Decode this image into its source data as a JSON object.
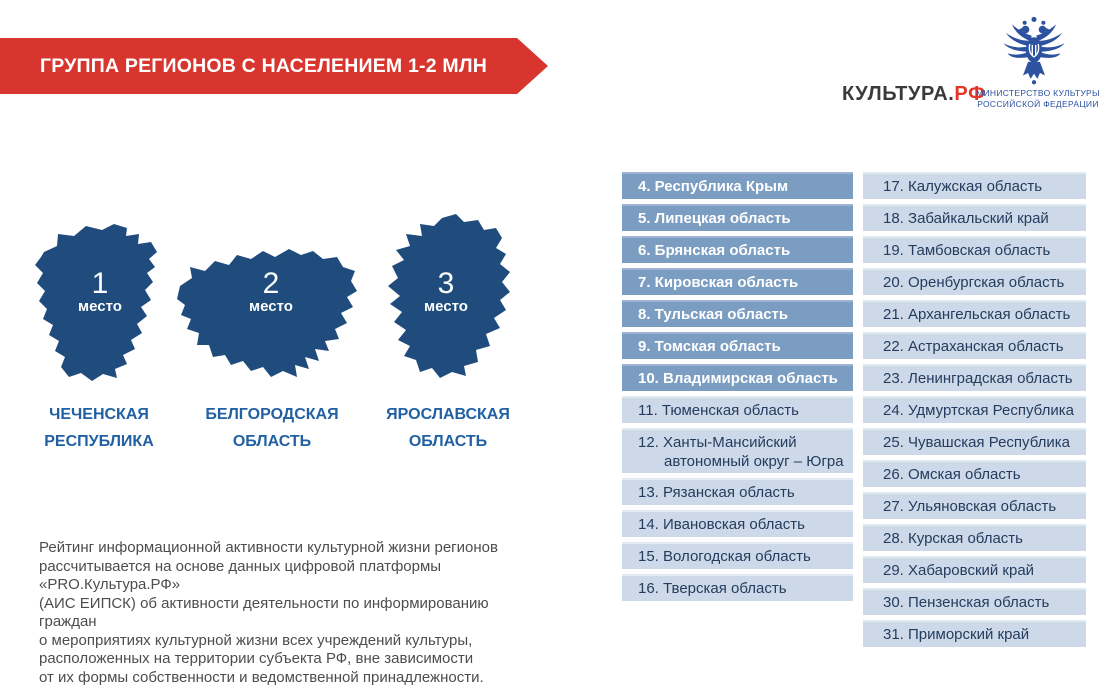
{
  "header": {
    "banner_title": "ГРУППА РЕГИОНОВ С НАСЕЛЕНИЕМ 1-2 МЛН",
    "brand": {
      "name_dark": "КУЛЬТУРА.",
      "name_red": "РФ"
    },
    "ministry": {
      "line1": "МИНИСТЕРСТВО КУЛЬТУРЫ",
      "line2": "РОССИЙСКОЙ ФЕДЕРАЦИИ",
      "emblem_icon": "double-headed-eagle"
    }
  },
  "top3": [
    {
      "rank": "1",
      "place_label": "место",
      "region_line1": "ЧЕЧЕНСКАЯ",
      "region_line2": "РЕСПУБЛИКА"
    },
    {
      "rank": "2",
      "place_label": "место",
      "region_line1": "БЕЛГОРОДСКАЯ",
      "region_line2": "ОБЛАСТЬ"
    },
    {
      "rank": "3",
      "place_label": "место",
      "region_line1": "ЯРОСЛАВСКАЯ",
      "region_line2": "ОБЛАСТЬ"
    }
  ],
  "ranking": {
    "column1": [
      {
        "text": "4. Республика Крым",
        "style": "dark"
      },
      {
        "text": "5. Липецкая область",
        "style": "dark"
      },
      {
        "text": "6. Брянская область",
        "style": "dark"
      },
      {
        "text": "7. Кировская область",
        "style": "dark"
      },
      {
        "text": "8. Тульская область",
        "style": "dark"
      },
      {
        "text": "9. Томская область",
        "style": "dark"
      },
      {
        "text": "10. Владимирская область",
        "style": "dark"
      },
      {
        "text": "11. Тюменская область",
        "style": "light"
      },
      {
        "text": "12. Ханты-Мансийский автономный округ – Югра",
        "style": "light",
        "tall": true
      },
      {
        "text": "13. Рязанская область",
        "style": "light"
      },
      {
        "text": "14. Ивановская область",
        "style": "light"
      },
      {
        "text": "15. Вологодская область",
        "style": "light"
      },
      {
        "text": "16. Тверская область",
        "style": "light"
      }
    ],
    "column2": [
      {
        "text": "17. Калужская область",
        "style": "light"
      },
      {
        "text": "18. Забайкальский край",
        "style": "light"
      },
      {
        "text": "19. Тамбовская область",
        "style": "light"
      },
      {
        "text": "20. Оренбургская область",
        "style": "light"
      },
      {
        "text": "21. Архангельская область",
        "style": "light"
      },
      {
        "text": "22. Астраханская область",
        "style": "light"
      },
      {
        "text": "23. Ленинградская область",
        "style": "light"
      },
      {
        "text": "24. Удмуртская Республика",
        "style": "light"
      },
      {
        "text": "25. Чувашская Республика",
        "style": "light"
      },
      {
        "text": "26. Омская область",
        "style": "light"
      },
      {
        "text": "27. Ульяновская область",
        "style": "light"
      },
      {
        "text": "28. Курская область",
        "style": "light"
      },
      {
        "text": "29. Хабаровский край",
        "style": "light"
      },
      {
        "text": "30. Пензенская область",
        "style": "light"
      },
      {
        "text": "31. Приморский край",
        "style": "light"
      }
    ]
  },
  "footnote": "Рейтинг информационной активности культурной жизни регионов\nрассчитывается на основе данных цифровой платформы «PRO.Культура.РФ»\n(АИС ЕИПСК) об активности деятельности по информированию граждан\nо мероприятиях культурной жизни всех учреждений культуры,\nрасположенных на территории субъекта РФ, вне зависимости\nот их формы собственности и ведомственной принадлежности.",
  "colors": {
    "banner_red": "#d7352e",
    "map_navy": "#1f4c7d",
    "accent_blue": "#2161a3",
    "dark_row_bg": "#7c9dc2",
    "light_row_bg": "#cdd9e8",
    "row_text_dark": "#243c5e",
    "ministry_blue": "#2d52a0",
    "brand_red": "#e53529",
    "brand_dark": "#3a3a3a"
  }
}
